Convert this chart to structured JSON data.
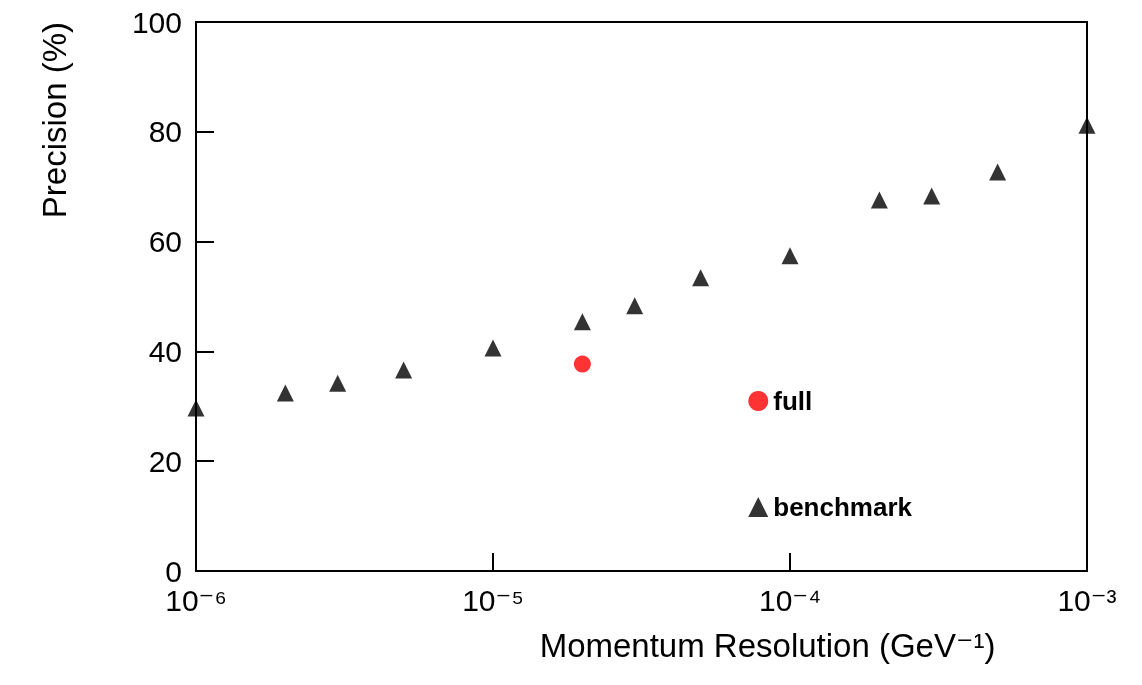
{
  "chart_data": {
    "type": "scatter",
    "xlabel": "Momentum Resolution (GeV⁻¹)",
    "ylabel": "Precision (%)",
    "log": "x",
    "xlim": [
      1e-06,
      0.001
    ],
    "ylim": [
      0,
      100
    ],
    "xticks": [
      {
        "value": 1e-06,
        "label": "10⁻⁶"
      },
      {
        "value": 1e-05,
        "label": "10⁻⁵"
      },
      {
        "value": 0.0001,
        "label": "10⁻⁴"
      },
      {
        "value": 0.001,
        "label": "10⁻³"
      }
    ],
    "yticks": [
      0,
      20,
      40,
      60,
      80,
      100
    ],
    "grid": false,
    "legend": "bottom right",
    "series": [
      {
        "name": "full",
        "color": "#ff0000",
        "marker": "circle",
        "x": [
          2e-05
        ],
        "values": [
          37.7
        ]
      },
      {
        "name": "benchmark",
        "color": "#000000",
        "marker": "triangle",
        "x": [
          1e-06,
          2e-06,
          3e-06,
          5e-06,
          1e-05,
          2e-05,
          3e-05,
          5e-05,
          0.0001,
          0.0002,
          0.0003,
          0.0005,
          0.001
        ],
        "values": [
          29.7,
          32.4,
          34.2,
          36.6,
          40.6,
          45.4,
          48.3,
          53.4,
          57.4,
          67.6,
          68.3,
          72.7,
          81.2
        ]
      }
    ]
  }
}
